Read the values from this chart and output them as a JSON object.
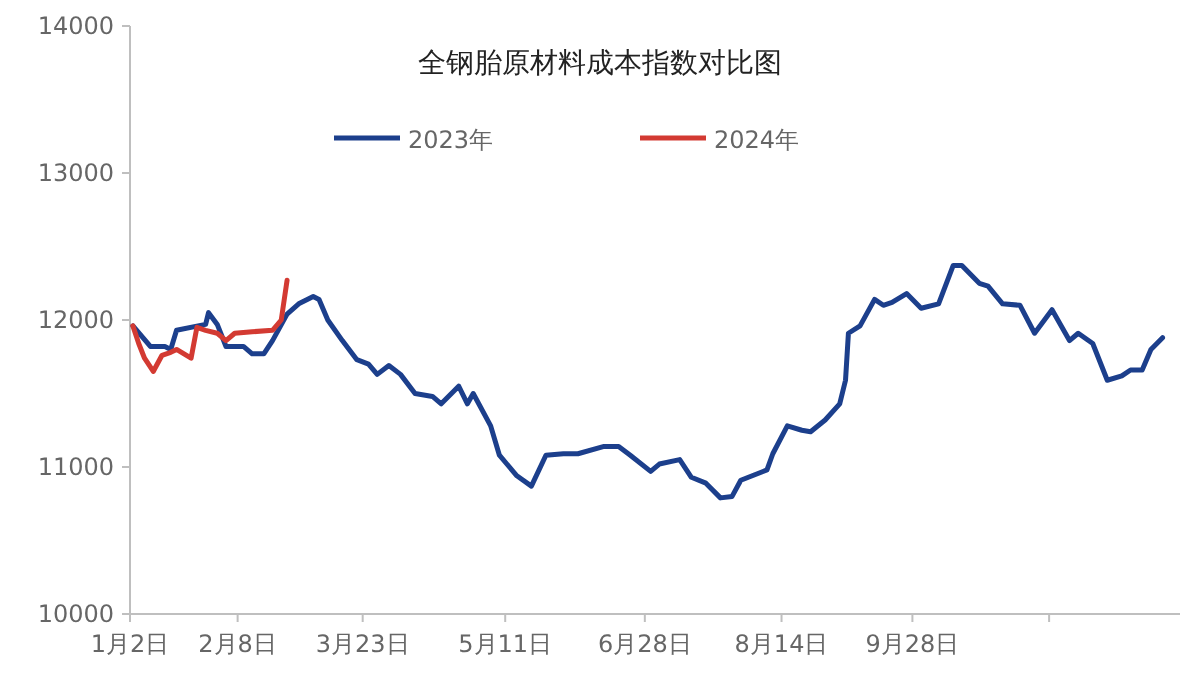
{
  "chart_data": {
    "type": "line",
    "title": "全钢胎原材料成本指数对比图",
    "xlim": [
      "--01-02",
      "--12-29"
    ],
    "ylim": [
      10000,
      14000
    ],
    "xticks": [
      {
        "value": "--01-02",
        "label": "1月2日"
      },
      {
        "value": "--02-08",
        "label": "2月8日"
      },
      {
        "value": "--03-23",
        "label": "3月23日"
      },
      {
        "value": "--05-11",
        "label": "5月11日"
      },
      {
        "value": "--06-28",
        "label": "6月28日"
      },
      {
        "value": "--08-14",
        "label": "8月14日"
      },
      {
        "value": "--09-28",
        "label": "9月28日"
      },
      {
        "value": "--11-14",
        "label": null
      }
    ],
    "yticks": [
      10000,
      11000,
      12000,
      13000,
      14000
    ],
    "grid": false,
    "legend": "top",
    "marker": "none",
    "line_style": "solid",
    "series": [
      {
        "name": "2023年",
        "color": "#1c3f8c",
        "x": [
          "--01-03",
          "--01-09",
          "--01-14",
          "--01-16",
          "--01-18",
          "--01-28",
          "--01-29",
          "--02-01",
          "--02-04",
          "--02-10",
          "--02-13",
          "--02-17",
          "--02-20",
          "--02-25",
          "--03-01",
          "--03-06",
          "--03-08",
          "--03-11",
          "--03-16",
          "--03-21",
          "--03-25",
          "--03-28",
          "--04-01",
          "--04-05",
          "--04-10",
          "--04-16",
          "--04-19",
          "--04-25",
          "--04-28",
          "--04-30",
          "--05-06",
          "--05-09",
          "--05-15",
          "--05-20",
          "--05-25",
          "--05-31",
          "--06-05",
          "--06-14",
          "--06-19",
          "--06-23",
          "--06-30",
          "--07-03",
          "--07-10",
          "--07-14",
          "--07-19",
          "--07-24",
          "--07-28",
          "--07-31",
          "--08-09",
          "--08-11",
          "--08-16",
          "--08-21",
          "--08-24",
          "--08-29",
          "--09-03",
          "--09-05",
          "--09-06",
          "--09-10",
          "--09-15",
          "--09-18",
          "--09-21",
          "--09-26",
          "--10-01",
          "--10-07",
          "--10-12",
          "--10-15",
          "--10-21",
          "--10-24",
          "--10-29",
          "--11-04",
          "--11-09",
          "--11-15",
          "--11-21",
          "--11-24",
          "--11-29",
          "--12-04",
          "--12-09",
          "--12-12",
          "--12-16",
          "--12-19",
          "--12-23"
        ],
        "values": [
          11960,
          11820,
          11820,
          11800,
          11930,
          11970,
          12050,
          11970,
          11820,
          11820,
          11770,
          11770,
          11860,
          12040,
          12110,
          12160,
          12140,
          12000,
          11860,
          11730,
          11700,
          11630,
          11690,
          11630,
          11500,
          11480,
          11430,
          11550,
          11430,
          11500,
          11280,
          11080,
          10940,
          10870,
          11080,
          11090,
          11090,
          11140,
          11140,
          11080,
          10970,
          11020,
          11050,
          10930,
          10890,
          10790,
          10800,
          10910,
          10980,
          11090,
          11280,
          11250,
          11240,
          11320,
          11430,
          11590,
          11910,
          11960,
          12140,
          12100,
          12120,
          12180,
          12080,
          12110,
          12370,
          12370,
          12250,
          12230,
          12110,
          12100,
          11910,
          12070,
          11860,
          11910,
          11840,
          11590,
          11620,
          11660,
          11660,
          11800,
          11880
        ]
      },
      {
        "name": "2024年",
        "color": "#d33a32",
        "x": [
          "--01-03",
          "--01-05",
          "--01-07",
          "--01-10",
          "--01-13",
          "--01-16",
          "--01-18",
          "--01-23",
          "--01-25",
          "--01-28",
          "--02-01",
          "--02-04",
          "--02-07",
          "--02-13",
          "--02-20",
          "--02-23",
          "--02-25"
        ],
        "values": [
          11960,
          11840,
          11740,
          11650,
          11760,
          11780,
          11800,
          11740,
          11950,
          11930,
          11910,
          11860,
          11910,
          11920,
          11930,
          12000,
          12270
        ]
      }
    ]
  }
}
